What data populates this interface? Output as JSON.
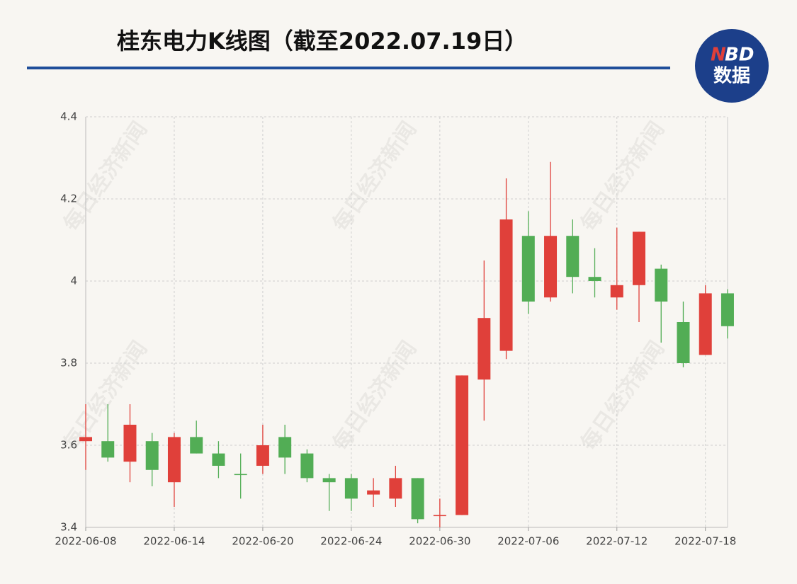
{
  "chart_data": {
    "type": "candlestick",
    "title": "桂东电力K线图（截至2022.07.19日）",
    "logo": {
      "brand_first": "N",
      "brand_rest": "BD",
      "label": "数据"
    },
    "watermark": "每日经济新闻",
    "categories": [
      "2022-06-08",
      null,
      null,
      null,
      "2022-06-14",
      null,
      null,
      null,
      "2022-06-20",
      null,
      null,
      null,
      "2022-06-24",
      null,
      null,
      null,
      "2022-06-30",
      null,
      null,
      null,
      "2022-07-06",
      null,
      null,
      null,
      "2022-07-12",
      null,
      null,
      null,
      "2022-07-18",
      null
    ],
    "open": [
      3.61,
      3.61,
      3.56,
      3.61,
      3.51,
      3.62,
      3.58,
      3.53,
      3.55,
      3.62,
      3.58,
      3.52,
      3.52,
      3.48,
      3.47,
      3.52,
      3.43,
      3.43,
      3.76,
      3.83,
      4.11,
      3.96,
      4.11,
      4.01,
      3.96,
      3.99,
      4.03,
      3.9,
      3.82,
      3.97
    ],
    "high": [
      3.7,
      3.7,
      3.7,
      3.63,
      3.63,
      3.66,
      3.61,
      3.58,
      3.65,
      3.65,
      3.59,
      3.53,
      3.53,
      3.52,
      3.55,
      3.52,
      3.47,
      3.77,
      4.05,
      4.25,
      4.17,
      4.29,
      4.15,
      4.08,
      4.13,
      4.12,
      4.04,
      3.95,
      3.99,
      3.98
    ],
    "low": [
      3.54,
      3.56,
      3.51,
      3.5,
      3.45,
      3.58,
      3.52,
      3.47,
      3.53,
      3.53,
      3.51,
      3.44,
      3.44,
      3.45,
      3.45,
      3.41,
      3.4,
      3.43,
      3.66,
      3.81,
      3.92,
      3.95,
      3.97,
      3.96,
      3.93,
      3.9,
      3.85,
      3.79,
      3.82,
      3.86
    ],
    "close": [
      3.62,
      3.57,
      3.65,
      3.54,
      3.62,
      3.58,
      3.55,
      3.53,
      3.6,
      3.57,
      3.52,
      3.51,
      3.47,
      3.49,
      3.52,
      3.42,
      3.43,
      3.77,
      3.91,
      4.15,
      3.95,
      4.11,
      4.01,
      4.0,
      3.99,
      4.12,
      3.95,
      3.8,
      3.97,
      3.89
    ],
    "up_color": "#e0403a",
    "down_color": "#52ad55",
    "ylim": [
      3.4,
      4.4
    ],
    "yticks": [
      3.4,
      3.6,
      3.8,
      4,
      4.2,
      4.4
    ],
    "grid": true
  }
}
